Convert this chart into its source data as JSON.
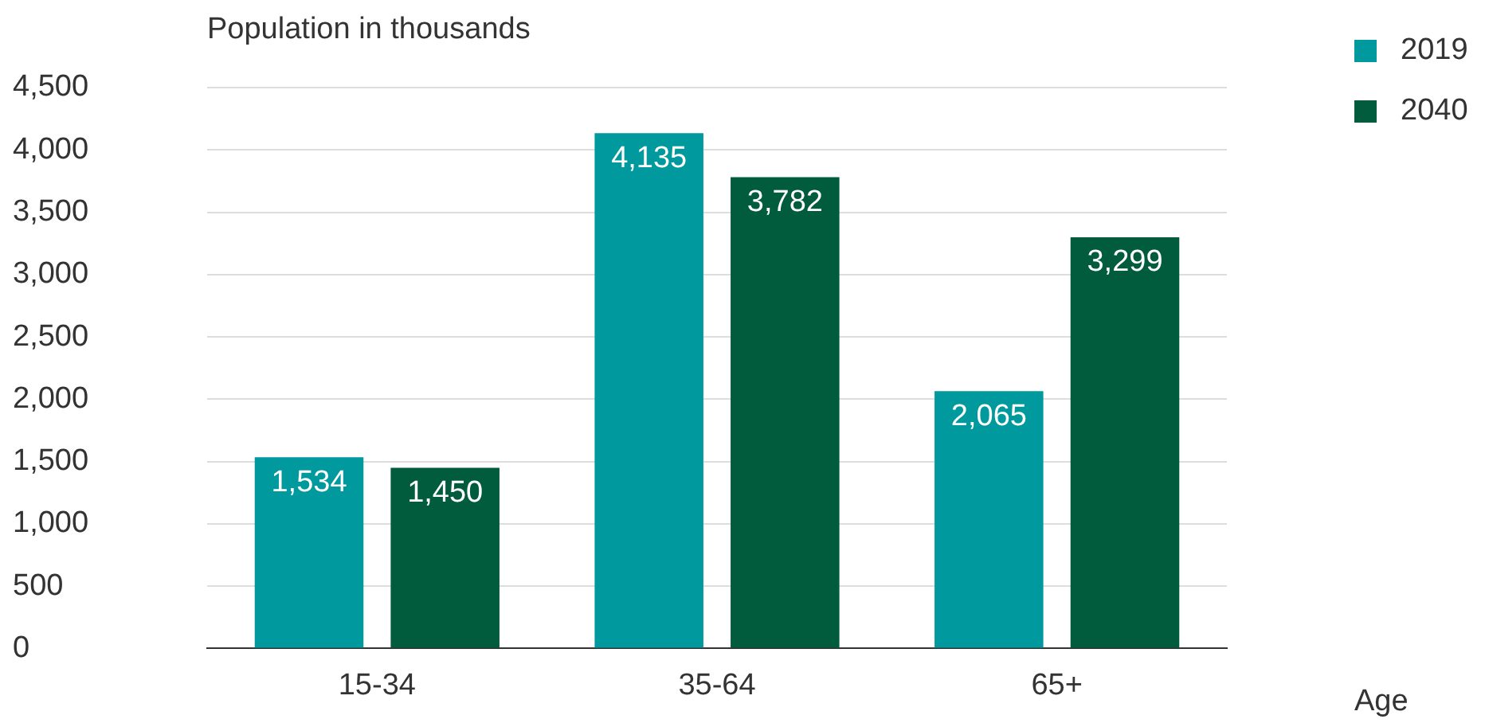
{
  "chart_data": {
    "type": "bar",
    "ylabel": "Population in thousands",
    "xlabel": "Age",
    "categories": [
      "15-34",
      "35-64",
      "65+"
    ],
    "series": [
      {
        "name": "2019",
        "color": "#00999d",
        "values": [
          1534,
          4135,
          2065
        ],
        "value_labels": [
          "1,534",
          "4,135",
          "2,065"
        ]
      },
      {
        "name": "2040",
        "color": "#005c3c",
        "values": [
          1450,
          3782,
          3299
        ],
        "value_labels": [
          "1,450",
          "3,782",
          "3,299"
        ]
      }
    ],
    "ylim": [
      0,
      4500
    ],
    "yticks": [
      {
        "value": 0,
        "label": "0"
      },
      {
        "value": 500,
        "label": "500"
      },
      {
        "value": 1000,
        "label": "1,000"
      },
      {
        "value": 1500,
        "label": "1,500"
      },
      {
        "value": 2000,
        "label": "2,000"
      },
      {
        "value": 2500,
        "label": "2,500"
      },
      {
        "value": 3000,
        "label": "3,000"
      },
      {
        "value": 3500,
        "label": "3,500"
      },
      {
        "value": 4000,
        "label": "4,000"
      },
      {
        "value": 4500,
        "label": "4,500"
      }
    ],
    "grid": "y",
    "legend": "top right"
  }
}
